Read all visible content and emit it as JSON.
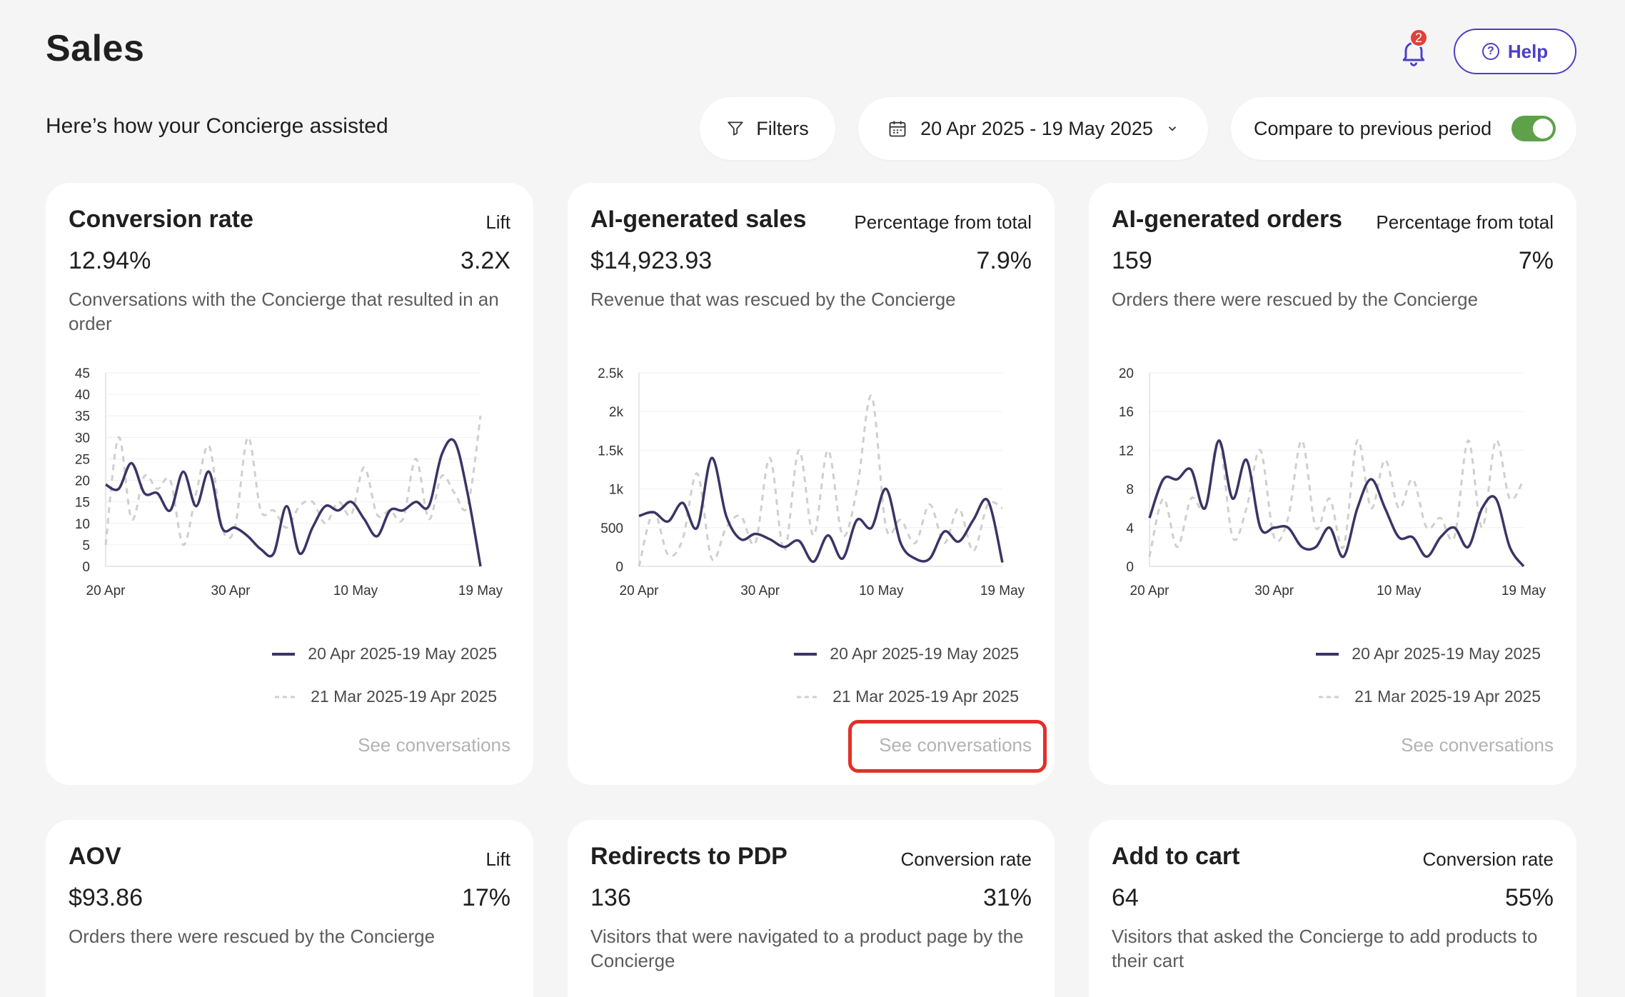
{
  "header": {
    "title": "Sales",
    "notifications_count": "2",
    "help_label": "Help"
  },
  "toolbar": {
    "subtitle": "Here’s how your Concierge assisted",
    "filters_label": "Filters",
    "date_range": "20 Apr 2025 - 19 May 2025",
    "compare_label": "Compare to previous period",
    "compare_enabled": true
  },
  "colors": {
    "accent": "#4b3fc7",
    "current_series": "#3a3566",
    "previous_series": "#cfcfcf",
    "toggle_on": "#5ea14a",
    "highlight": "#e03127"
  },
  "cards": [
    {
      "title": "Conversion rate",
      "meta": "Lift",
      "value": "12.94%",
      "value2": "3.2X",
      "description": "Conversations with the Concierge that resulted in an order",
      "see": "See conversations"
    },
    {
      "title": "AI-generated sales",
      "meta": "Percentage from total",
      "value": "$14,923.93",
      "value2": "7.9%",
      "description": "Revenue that was rescued by the Concierge",
      "see": "See conversations"
    },
    {
      "title": "AI-generated orders",
      "meta": "Percentage from total",
      "value": "159",
      "value2": "7%",
      "description": "Orders there were rescued by the Concierge",
      "see": "See conversations"
    },
    {
      "title": "AOV",
      "meta": "Lift",
      "value": "$93.86",
      "value2": "17%",
      "description": "Orders there were rescued by the Concierge"
    },
    {
      "title": "Redirects to PDP",
      "meta": "Conversion rate",
      "value": "136",
      "value2": "31%",
      "description": "Visitors that were navigated to a product page by the Concierge"
    },
    {
      "title": "Add to cart",
      "meta": "Conversion rate",
      "value": "64",
      "value2": "55%",
      "description": "Visitors that asked the Concierge to add products to their cart"
    }
  ],
  "chart_data": [
    {
      "type": "line",
      "x_ticks": [
        "20 Apr",
        "30 Apr",
        "10 May",
        "19 May"
      ],
      "y_ticks": [
        "0",
        "5",
        "10",
        "15",
        "20",
        "25",
        "30",
        "35",
        "40",
        "45"
      ],
      "ylim": [
        0,
        45
      ],
      "series": [
        {
          "name": "20 Apr 2025-19 May 2025",
          "values": [
            19,
            18,
            24,
            17,
            17,
            13,
            22,
            14,
            22,
            9,
            9,
            7,
            4,
            3,
            14,
            3,
            9,
            14,
            13,
            15,
            11,
            7,
            13,
            13,
            15,
            14,
            26,
            29,
            17,
            0
          ]
        },
        {
          "name": "21 Mar 2025-19 Apr 2025",
          "values": [
            5,
            30,
            11,
            21,
            18,
            20,
            5,
            17,
            28,
            9,
            9,
            30,
            13,
            13,
            9,
            14,
            15,
            10,
            15,
            12,
            23,
            12,
            13,
            11,
            25,
            11,
            21,
            17,
            14,
            35
          ]
        }
      ]
    },
    {
      "type": "line",
      "x_ticks": [
        "20 Apr",
        "30 Apr",
        "10 May",
        "19 May"
      ],
      "y_ticks": [
        "0",
        "500",
        "1k",
        "1.5k",
        "2k",
        "2.5k"
      ],
      "ylim": [
        0,
        2500
      ],
      "series": [
        {
          "name": "20 Apr 2025-19 May 2025",
          "values": [
            650,
            700,
            580,
            820,
            500,
            1400,
            650,
            350,
            420,
            350,
            250,
            330,
            60,
            400,
            100,
            600,
            500,
            1000,
            300,
            100,
            100,
            450,
            320,
            600,
            850,
            50
          ]
        },
        {
          "name": "21 Mar 2025-19 Apr 2025",
          "values": [
            0,
            700,
            150,
            350,
            1200,
            100,
            500,
            650,
            300,
            1400,
            200,
            1500,
            400,
            1500,
            400,
            1000,
            2200,
            500,
            600,
            300,
            800,
            300,
            750,
            200,
            800,
            750
          ]
        }
      ]
    },
    {
      "type": "line",
      "x_ticks": [
        "20 Apr",
        "30 Apr",
        "10 May",
        "19 May"
      ],
      "y_ticks": [
        "0",
        "4",
        "8",
        "12",
        "16",
        "20"
      ],
      "ylim": [
        0,
        20
      ],
      "series": [
        {
          "name": "20 Apr 2025-19 May 2025",
          "values": [
            5,
            9,
            9,
            10,
            6,
            13,
            7,
            11,
            4,
            4,
            4,
            2,
            2,
            4,
            1,
            6,
            9,
            6,
            3,
            3,
            1,
            3,
            4,
            2,
            6,
            7,
            2,
            0
          ]
        },
        {
          "name": "21 Mar 2025-19 Apr 2025",
          "values": [
            1,
            7,
            2,
            7,
            6,
            13,
            3,
            6,
            12,
            3,
            5,
            13,
            4,
            7,
            2,
            13,
            6,
            11,
            6,
            9,
            4,
            5,
            3,
            13,
            4,
            13,
            7,
            9
          ]
        }
      ]
    }
  ]
}
